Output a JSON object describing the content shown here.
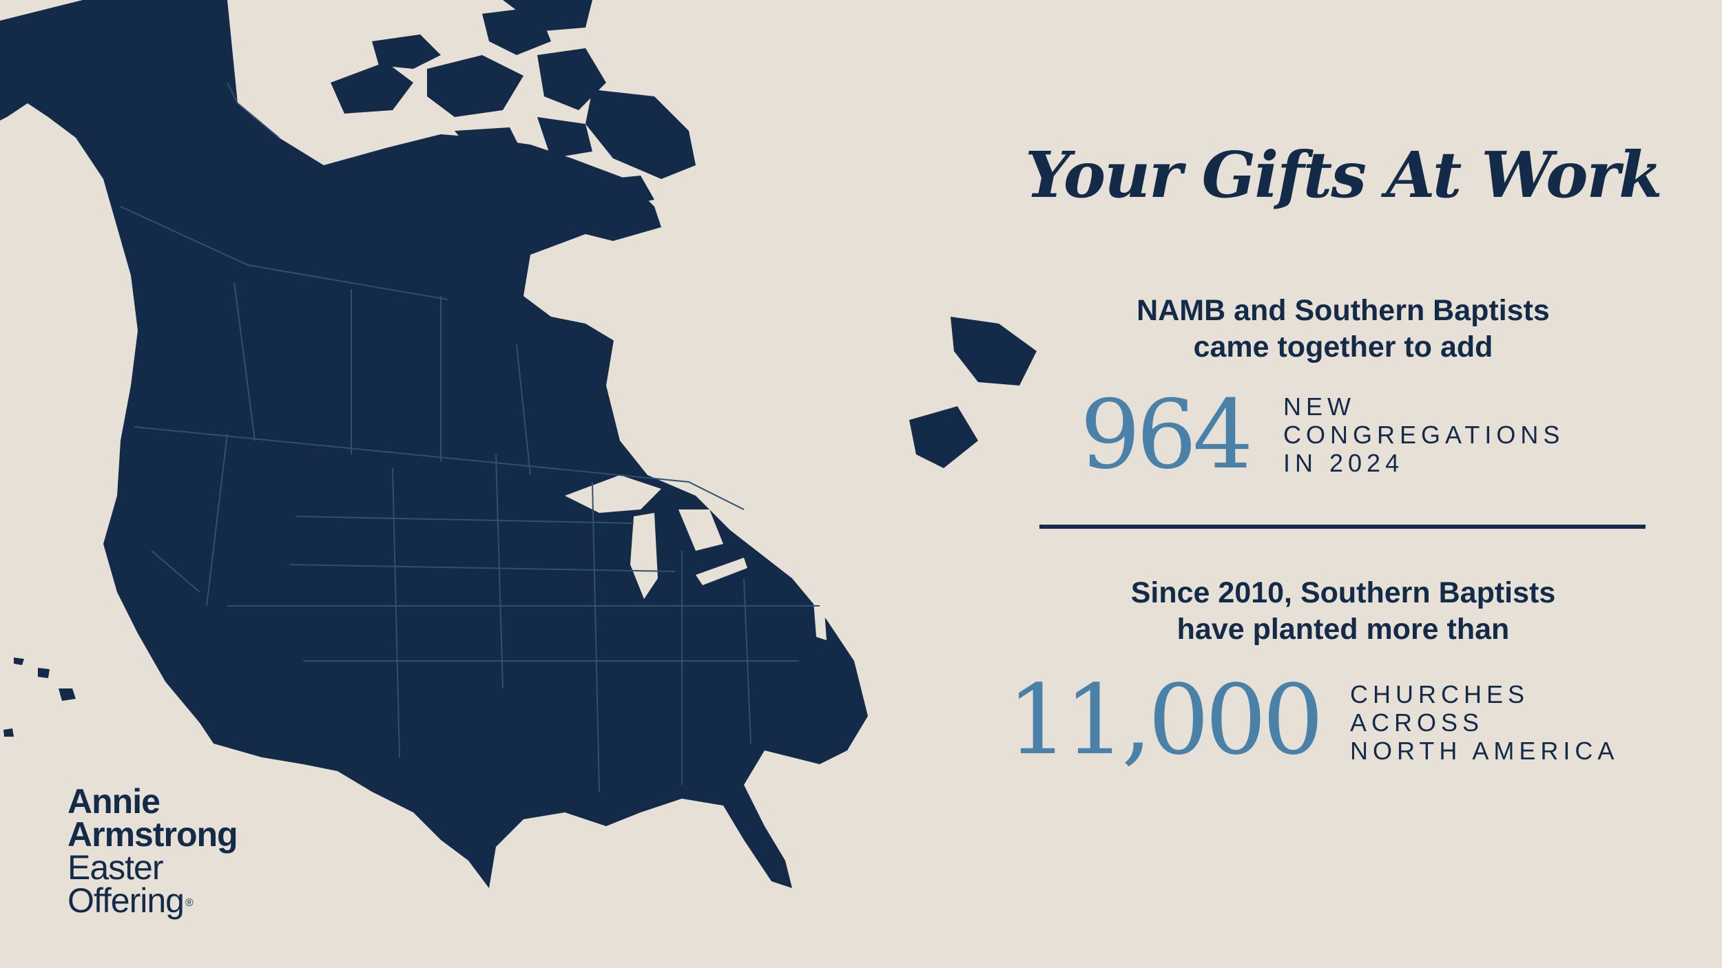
{
  "colors": {
    "background": "#e7e0d6",
    "map_fill": "#132b49",
    "map_borders": "#30506f",
    "accent_number": "#4a81a8",
    "text": "#132b49"
  },
  "map": {
    "icon": "north-america-map"
  },
  "headline": "Your Gifts At Work",
  "stat_1": {
    "intro_line_1": "NAMB and Southern Baptists",
    "intro_line_2": "came together to add",
    "number": "964",
    "label_line_1": "NEW",
    "label_line_2": "CONGREGATIONS",
    "label_line_3": "IN 2024"
  },
  "stat_2": {
    "intro_line_1": "Since 2010, Southern Baptists",
    "intro_line_2": "have planted more than",
    "number": "11,000",
    "label_line_1": "CHURCHES",
    "label_line_2": "ACROSS",
    "label_line_3": "NORTH AMERICA"
  },
  "logo": {
    "line_1": "Annie",
    "line_2": "Armstrong",
    "line_3": "Easter",
    "line_4": "Offering",
    "mark": "®"
  }
}
